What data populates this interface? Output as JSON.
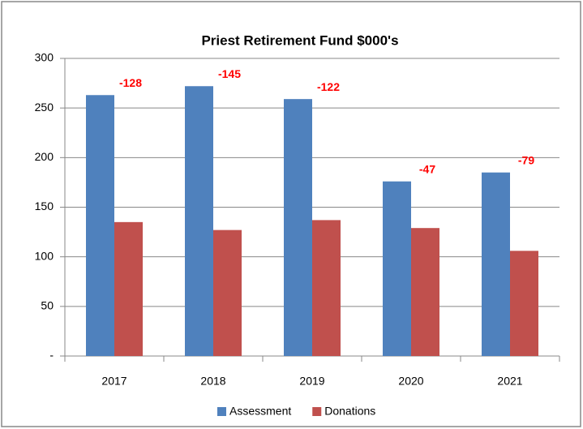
{
  "chart_data": {
    "type": "bar",
    "title": "Priest Retirement Fund $000's",
    "categories": [
      "2017",
      "2018",
      "2019",
      "2020",
      "2021"
    ],
    "series": [
      {
        "name": "Assessment",
        "color": "#4f81bd",
        "values": [
          263,
          272,
          259,
          176,
          185
        ]
      },
      {
        "name": "Donations",
        "color": "#c0504d",
        "values": [
          135,
          127,
          137,
          129,
          106
        ]
      }
    ],
    "differences": [
      -128,
      -145,
      -122,
      -47,
      -79
    ],
    "ylim": [
      0,
      300
    ],
    "yticks": [
      {
        "value": 0,
        "label": "-"
      },
      50,
      100,
      150,
      200,
      250,
      300
    ],
    "grid": true,
    "legend": "bottom"
  }
}
